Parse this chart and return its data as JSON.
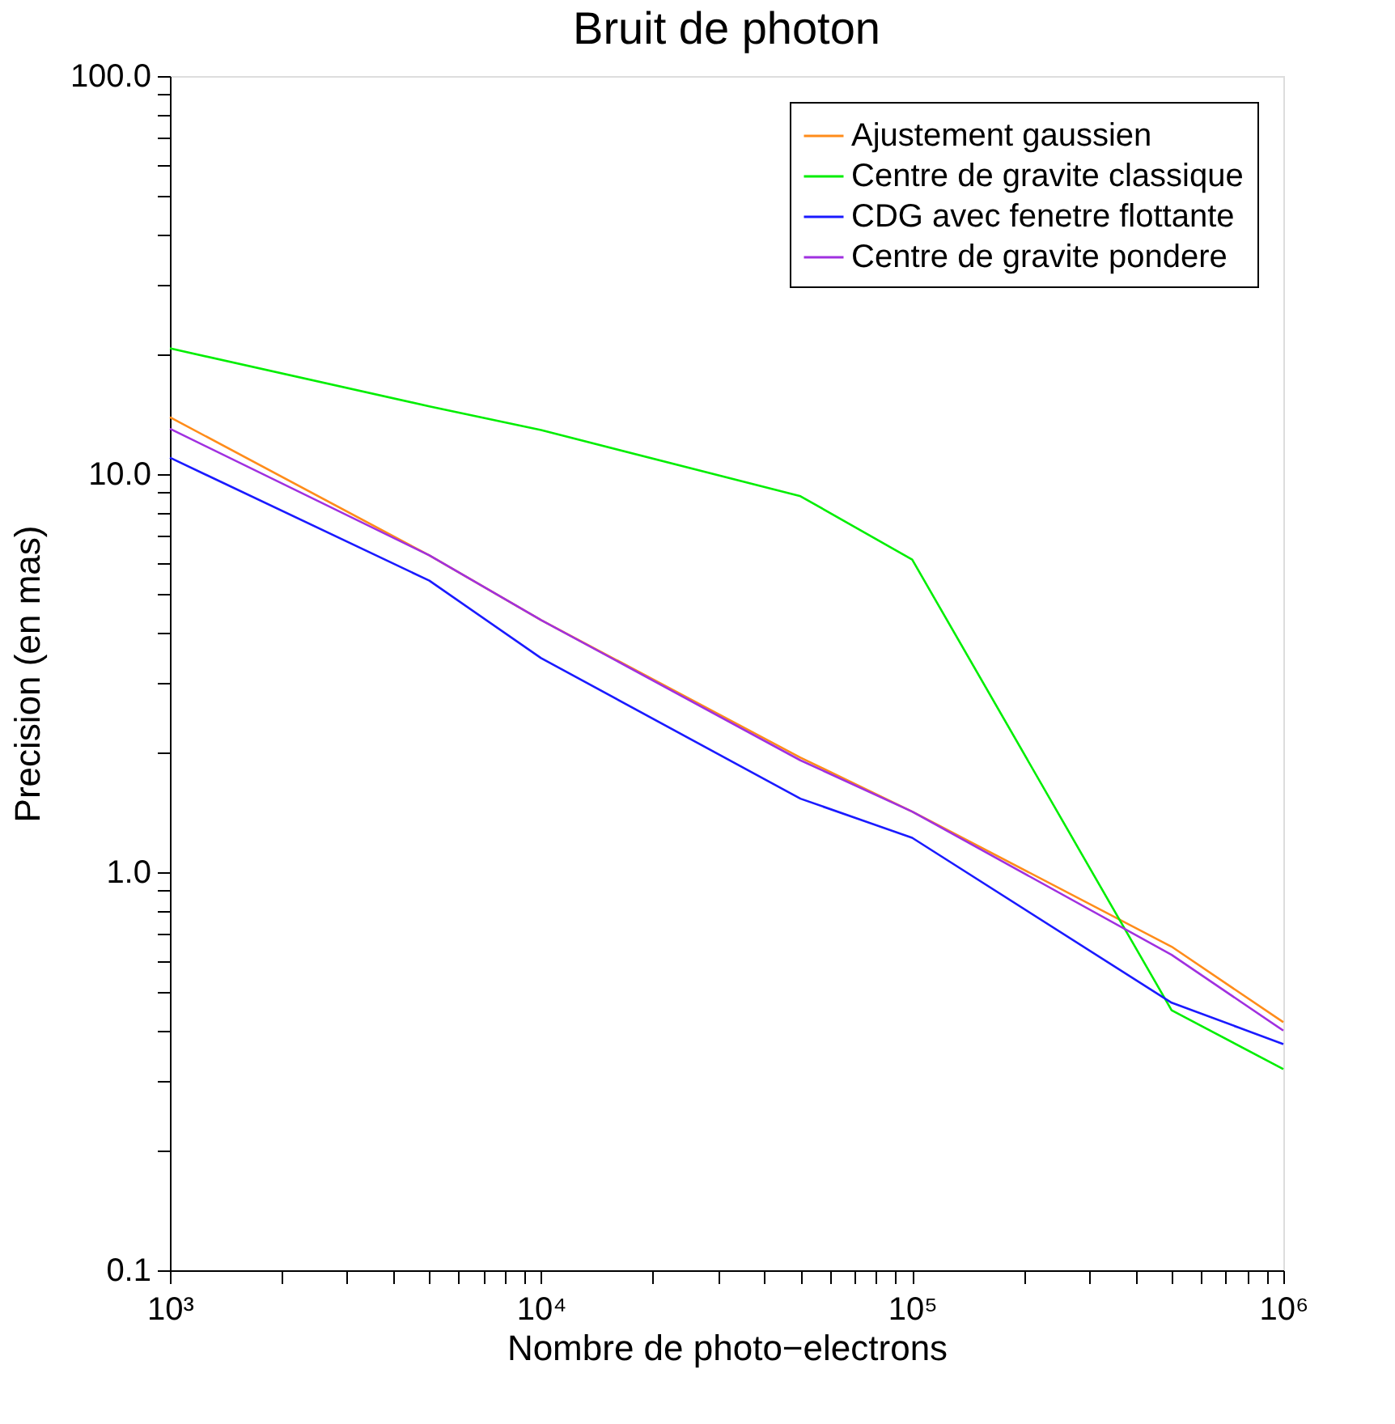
{
  "chart_data": {
    "type": "line",
    "title": "Bruit de photon",
    "xlabel": "Nombre de photo−electrons",
    "ylabel": "Precision (en mas)",
    "x": [
      1000,
      5000,
      10000,
      50000,
      100000,
      500000,
      1000000
    ],
    "series": [
      {
        "name": "Ajustement gaussien",
        "color": "#ff8c1a",
        "values": [
          13.9,
          6.25,
          4.3,
          1.94,
          1.42,
          0.65,
          0.42
        ]
      },
      {
        "name": "Centre de gravite classique",
        "color": "#00ee00",
        "values": [
          20.7,
          14.8,
          12.9,
          8.8,
          6.1,
          0.45,
          0.32
        ]
      },
      {
        "name": "CDG avec fenetre flottante",
        "color": "#1a1aff",
        "values": [
          11.0,
          5.4,
          3.45,
          1.53,
          1.22,
          0.47,
          0.37
        ]
      },
      {
        "name": "Centre de gravite pondere",
        "color": "#a030e0",
        "values": [
          13.0,
          6.25,
          4.3,
          1.91,
          1.42,
          0.62,
          0.4
        ]
      }
    ],
    "log": "xy",
    "xlim": [
      1000,
      1000000
    ],
    "ylim": [
      0.1,
      100
    ],
    "xticks": [
      {
        "value": 1000,
        "label": "10³"
      },
      {
        "value": 2000,
        "label": null
      },
      {
        "value": 3000,
        "label": null
      },
      {
        "value": 4000,
        "label": null
      },
      {
        "value": 5000,
        "label": null
      },
      {
        "value": 6000,
        "label": null
      },
      {
        "value": 7000,
        "label": null
      },
      {
        "value": 8000,
        "label": null
      },
      {
        "value": 9000,
        "label": null
      },
      {
        "value": 10000,
        "label": "10⁴"
      },
      {
        "value": 20000,
        "label": null
      },
      {
        "value": 30000,
        "label": null
      },
      {
        "value": 40000,
        "label": null
      },
      {
        "value": 50000,
        "label": null
      },
      {
        "value": 60000,
        "label": null
      },
      {
        "value": 70000,
        "label": null
      },
      {
        "value": 80000,
        "label": null
      },
      {
        "value": 90000,
        "label": null
      },
      {
        "value": 100000,
        "label": "10⁵"
      },
      {
        "value": 200000,
        "label": null
      },
      {
        "value": 300000,
        "label": null
      },
      {
        "value": 400000,
        "label": null
      },
      {
        "value": 500000,
        "label": null
      },
      {
        "value": 600000,
        "label": null
      },
      {
        "value": 700000,
        "label": null
      },
      {
        "value": 800000,
        "label": null
      },
      {
        "value": 900000,
        "label": null
      },
      {
        "value": 1000000,
        "label": "10⁶"
      }
    ],
    "yticks": [
      0.1,
      {
        "value": 0.2,
        "label": null
      },
      {
        "value": 0.3,
        "label": null
      },
      {
        "value": 0.4,
        "label": null
      },
      {
        "value": 0.5,
        "label": null
      },
      {
        "value": 0.6,
        "label": null
      },
      {
        "value": 0.7,
        "label": null
      },
      {
        "value": 0.8,
        "label": null
      },
      {
        "value": 0.9,
        "label": null
      },
      {
        "value": 1,
        "label": "1.0"
      },
      {
        "value": 2,
        "label": null
      },
      {
        "value": 3,
        "label": null
      },
      {
        "value": 4,
        "label": null
      },
      {
        "value": 5,
        "label": null
      },
      {
        "value": 6,
        "label": null
      },
      {
        "value": 7,
        "label": null
      },
      {
        "value": 8,
        "label": null
      },
      {
        "value": 9,
        "label": null
      },
      {
        "value": 10,
        "label": "10.0"
      },
      {
        "value": 20,
        "label": null
      },
      {
        "value": 30,
        "label": null
      },
      {
        "value": 40,
        "label": null
      },
      {
        "value": 50,
        "label": null
      },
      {
        "value": 60,
        "label": null
      },
      {
        "value": 70,
        "label": null
      },
      {
        "value": 80,
        "label": null
      },
      {
        "value": 90,
        "label": null
      },
      {
        "value": 100,
        "label": "100.0"
      }
    ],
    "grid": false,
    "legend": "top right",
    "marker": "none",
    "line_style": "solid"
  }
}
